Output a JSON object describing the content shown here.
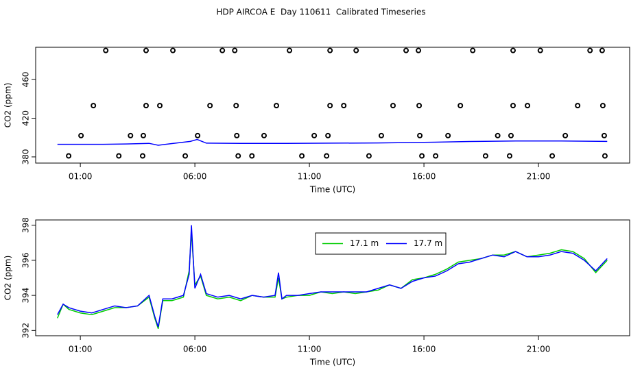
{
  "title": "HDP AIRCOA E  Day 110611  Calibrated Timeseries",
  "chart_data": [
    {
      "type": "scatter",
      "xlabel": "Time (UTC)",
      "ylabel": "CO2 (ppm)",
      "xlim": [
        -0.95,
        24.98
      ],
      "xticks": [
        {
          "value": 1,
          "label": "01:00"
        },
        {
          "value": 6,
          "label": "06:00"
        },
        {
          "value": 11,
          "label": "11:00"
        },
        {
          "value": 16,
          "label": "16:00"
        },
        {
          "value": 21,
          "label": "21:00"
        }
      ],
      "ylim": [
        373.6,
        493.3
      ],
      "yticks": [
        380,
        420,
        460
      ],
      "series": [
        {
          "mode": "markers",
          "color": "#000000",
          "x": [
            2.11,
            3.87,
            5.04,
            7.2,
            7.74,
            10.13,
            11.9,
            13.04,
            15.22,
            15.76,
            18.13,
            19.89,
            21.08,
            23.25,
            23.78,
            1.57,
            3.87,
            4.47,
            6.66,
            7.8,
            9.56,
            11.9,
            12.5,
            14.65,
            15.79,
            17.59,
            19.89,
            20.52,
            22.71,
            23.81,
            1.03,
            3.19,
            3.75,
            6.12,
            7.83,
            9.02,
            11.21,
            11.81,
            14.14,
            15.82,
            17.05,
            19.22,
            19.8,
            22.17,
            23.87,
            0.49,
            2.68,
            3.72,
            5.58,
            7.89,
            8.49,
            10.67,
            11.75,
            13.6,
            15.91,
            16.51,
            18.69,
            19.74,
            21.6,
            23.9
          ],
          "values": [
            490,
            490,
            490,
            490,
            490,
            490,
            490,
            490,
            490,
            490,
            490,
            490,
            490,
            490,
            490,
            433,
            433,
            433,
            433,
            433,
            433,
            433,
            433,
            433,
            433,
            433,
            433,
            433,
            433,
            433,
            402,
            402,
            402,
            402,
            402,
            402,
            402,
            402,
            402,
            402,
            402,
            402,
            402,
            402,
            402,
            381,
            381,
            381,
            381,
            381,
            381,
            381,
            381,
            381,
            381,
            381,
            381,
            381,
            381,
            381
          ]
        },
        {
          "mode": "line",
          "color": "#0000ff",
          "x": [
            0,
            1,
            2,
            3,
            4,
            4.4,
            5,
            5.8,
            6.1,
            6.5,
            8,
            10,
            12,
            14,
            16,
            18,
            20,
            22,
            24
          ],
          "values": [
            393,
            393,
            393,
            393.3,
            394,
            392,
            393.8,
            396,
            398,
            394.2,
            394,
            394,
            394.2,
            394.4,
            395,
            395.9,
            396.4,
            396.4,
            396
          ]
        }
      ]
    },
    {
      "type": "line",
      "xlabel": "Time (UTC)",
      "ylabel": "CO2 (ppm)",
      "xlim": [
        -0.95,
        24.98
      ],
      "xticks": [
        {
          "value": 1,
          "label": "01:00"
        },
        {
          "value": 6,
          "label": "06:00"
        },
        {
          "value": 11,
          "label": "11:00"
        },
        {
          "value": 16,
          "label": "16:00"
        },
        {
          "value": 21,
          "label": "21:00"
        }
      ],
      "ylim": [
        391.7,
        398.3
      ],
      "yticks": [
        392,
        394,
        396,
        398
      ],
      "legend": "top",
      "x": [
        0,
        0.25,
        0.5,
        1,
        1.5,
        2,
        2.5,
        3,
        3.5,
        4,
        4.25,
        4.4,
        4.6,
        5,
        5.5,
        5.75,
        5.85,
        6,
        6.25,
        6.5,
        7,
        7.5,
        8,
        8.5,
        9,
        9.5,
        9.65,
        9.8,
        10,
        10.5,
        11,
        11.5,
        12,
        12.5,
        13,
        13.5,
        14,
        14.5,
        15,
        15.5,
        16,
        16.5,
        17,
        17.5,
        18,
        18.5,
        19,
        19.5,
        20,
        20.5,
        21,
        21.5,
        22,
        22.5,
        23,
        23.5,
        24
      ],
      "series": [
        {
          "name": "17.1 m",
          "color": "#00cc00",
          "values": [
            392.7,
            393.5,
            393.2,
            393.0,
            392.9,
            393.1,
            393.3,
            393.3,
            393.4,
            393.9,
            392.7,
            392.1,
            393.7,
            393.7,
            393.9,
            395.4,
            397.6,
            394.6,
            395.1,
            394.0,
            393.8,
            393.9,
            393.7,
            394.0,
            393.9,
            393.9,
            395.0,
            393.8,
            393.9,
            394.0,
            394.0,
            394.2,
            394.1,
            394.2,
            394.1,
            394.2,
            394.3,
            394.6,
            394.4,
            394.9,
            395.0,
            395.2,
            395.5,
            395.9,
            396.0,
            396.1,
            396.3,
            396.3,
            396.5,
            396.2,
            396.3,
            396.4,
            396.6,
            396.5,
            396.1,
            395.3,
            396.0
          ]
        },
        {
          "name": "17.7 m",
          "color": "#0000ff",
          "values": [
            392.9,
            393.5,
            393.3,
            393.1,
            393.0,
            393.2,
            393.4,
            393.3,
            393.4,
            394.0,
            392.8,
            392.2,
            393.8,
            393.8,
            394.0,
            395.2,
            398.0,
            394.4,
            395.2,
            394.1,
            393.9,
            394.0,
            393.8,
            394.0,
            393.9,
            394.0,
            395.3,
            393.8,
            394.0,
            394.0,
            394.1,
            394.2,
            394.2,
            394.2,
            394.2,
            394.2,
            394.4,
            394.6,
            394.4,
            394.8,
            395.0,
            395.1,
            395.4,
            395.8,
            395.9,
            396.1,
            396.3,
            396.2,
            396.5,
            396.2,
            396.2,
            396.3,
            396.5,
            396.4,
            396.0,
            395.4,
            396.1
          ]
        }
      ]
    }
  ]
}
